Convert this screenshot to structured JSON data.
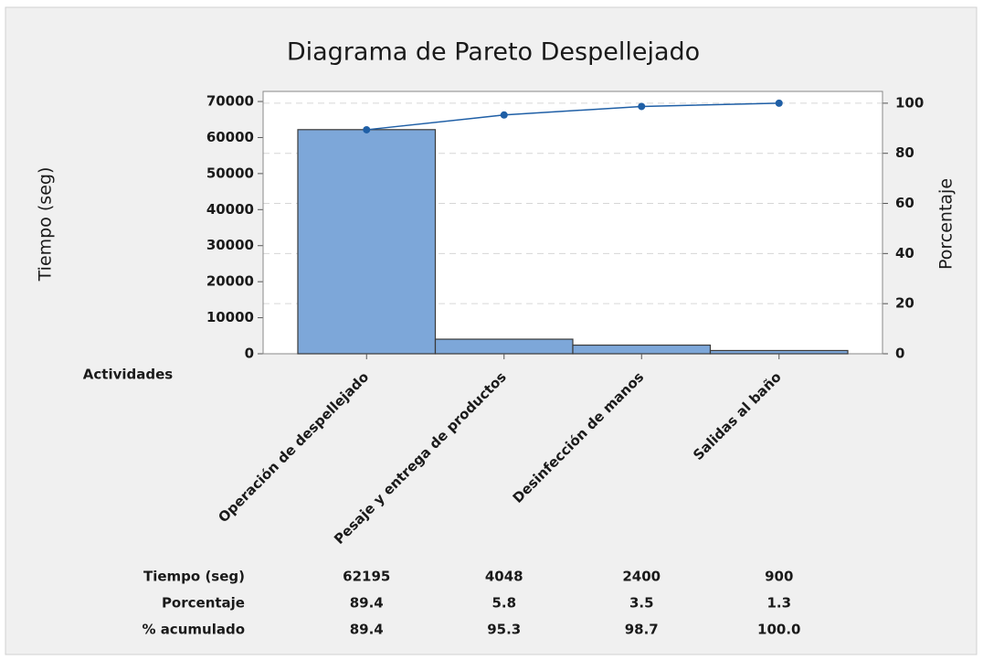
{
  "chart_data": {
    "type": "pareto",
    "title": "Diagrama de Pareto Despellejado",
    "ylabel": "Tiempo (seg)",
    "y2label": "Porcentaje",
    "category_label": "Actividades",
    "categories": [
      "Operación de despellejado",
      "Pesaje y entrega de productos",
      "Desinfección de manos",
      "Salidas al baño"
    ],
    "series": [
      {
        "name": "Tiempo (seg)",
        "color": "#7da7d9",
        "values": [
          62195,
          4048,
          2400,
          900
        ]
      },
      {
        "name": "Porcentaje",
        "values": [
          89.4,
          5.8,
          3.5,
          1.3
        ]
      },
      {
        "name": "% acumulado",
        "color": "#1f5fa6",
        "axis": "y2",
        "values": [
          89.4,
          95.3,
          98.7,
          100
        ],
        "value_labels": [
          "89.4",
          "95.3",
          "98.7",
          "100.0"
        ]
      }
    ],
    "ylim": [
      0,
      72800
    ],
    "yticks": [
      0,
      10000,
      20000,
      30000,
      40000,
      50000,
      60000,
      70000
    ],
    "y2lim": [
      0,
      104.7
    ],
    "y2ticks": [
      0,
      20,
      40,
      60,
      80,
      100
    ],
    "grid": true
  }
}
